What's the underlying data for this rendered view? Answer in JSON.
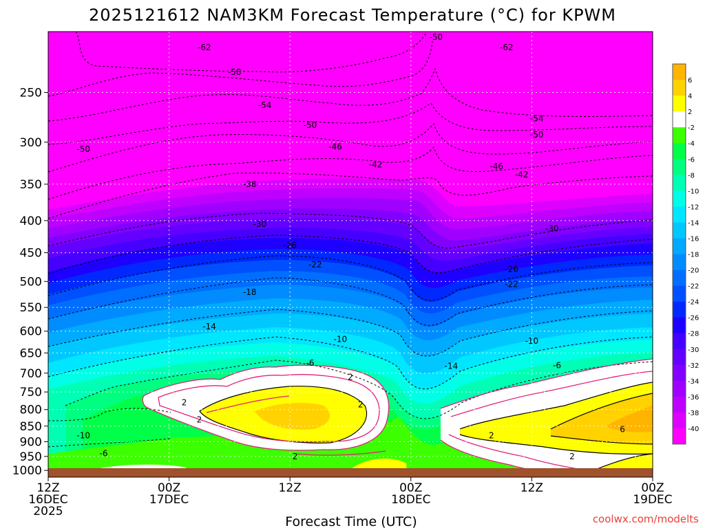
{
  "chart_data": {
    "type": "heatmap",
    "title": "2025121612 NAM3KM Forecast Temperature (°C) for KPWM",
    "xlabel": "Forecast Time (UTC)",
    "ylabel": "",
    "credit": "coolwx.com/modelts",
    "units": "°C",
    "x_range_hours": [
      0,
      60
    ],
    "y_range_hpa": [
      200,
      1025
    ],
    "y_scale": "log-pressure",
    "x_ticks": [
      {
        "hour": 0,
        "lines": [
          "12Z",
          "16DEC",
          "2025"
        ]
      },
      {
        "hour": 12,
        "lines": [
          "00Z",
          "17DEC"
        ]
      },
      {
        "hour": 24,
        "lines": [
          "12Z"
        ]
      },
      {
        "hour": 36,
        "lines": [
          "00Z",
          "18DEC"
        ]
      },
      {
        "hour": 48,
        "lines": [
          "12Z"
        ]
      },
      {
        "hour": 60,
        "lines": [
          "00Z",
          "19DEC"
        ]
      }
    ],
    "y_ticks": [
      250,
      300,
      350,
      400,
      450,
      500,
      550,
      600,
      650,
      700,
      750,
      800,
      850,
      900,
      950,
      1000
    ],
    "colorbar": {
      "bands": [
        {
          "lo": 6,
          "hi": 8,
          "color": "#ffb400"
        },
        {
          "lo": 4,
          "hi": 6,
          "color": "#ffd200"
        },
        {
          "lo": 2,
          "hi": 4,
          "color": "#ffff00"
        },
        {
          "lo": -2,
          "hi": 2,
          "color": "#ffffff"
        },
        {
          "lo": -4,
          "hi": -2,
          "color": "#3cff00"
        },
        {
          "lo": -6,
          "hi": -4,
          "color": "#00ff48"
        },
        {
          "lo": -8,
          "hi": -6,
          "color": "#00ff80"
        },
        {
          "lo": -10,
          "hi": -8,
          "color": "#00ffb4"
        },
        {
          "lo": -12,
          "hi": -10,
          "color": "#00ffe6"
        },
        {
          "lo": -14,
          "hi": -12,
          "color": "#00e6ff"
        },
        {
          "lo": -16,
          "hi": -14,
          "color": "#00c8ff"
        },
        {
          "lo": -18,
          "hi": -16,
          "color": "#00aaff"
        },
        {
          "lo": -20,
          "hi": -18,
          "color": "#008cff"
        },
        {
          "lo": -22,
          "hi": -20,
          "color": "#006eff"
        },
        {
          "lo": -24,
          "hi": -22,
          "color": "#0050ff"
        },
        {
          "lo": -26,
          "hi": -24,
          "color": "#0028ff"
        },
        {
          "lo": -28,
          "hi": -26,
          "color": "#1e00ff"
        },
        {
          "lo": -30,
          "hi": -28,
          "color": "#4600ff"
        },
        {
          "lo": -32,
          "hi": -30,
          "color": "#6400ff"
        },
        {
          "lo": -34,
          "hi": -32,
          "color": "#8200ff"
        },
        {
          "lo": -36,
          "hi": -34,
          "color": "#a000ff"
        },
        {
          "lo": -38,
          "hi": -36,
          "color": "#be00ff"
        },
        {
          "lo": -40,
          "hi": -38,
          "color": "#dc00ff"
        },
        {
          "lo": -99,
          "hi": -40,
          "color": "#ff00ff"
        }
      ],
      "tick_labels": [
        "6",
        "4",
        "2",
        "-2",
        "-4",
        "-6",
        "-8",
        "-10",
        "-12",
        "-14",
        "-16",
        "-18",
        "-20",
        "-22",
        "-24",
        "-26",
        "-28",
        "-30",
        "-32",
        "-34",
        "-36",
        "-38",
        "-40"
      ]
    },
    "contour_labels": [
      {
        "text": "-62",
        "hour": 15.5,
        "hpa": 212
      },
      {
        "text": "-58",
        "hour": 18.5,
        "hpa": 232
      },
      {
        "text": "-54",
        "hour": 21.5,
        "hpa": 262
      },
      {
        "text": "-50",
        "hour": 26.0,
        "hpa": 282
      },
      {
        "text": "-46",
        "hour": 28.5,
        "hpa": 305
      },
      {
        "text": "-42",
        "hour": 32.5,
        "hpa": 326
      },
      {
        "text": "-38",
        "hour": 20.0,
        "hpa": 350
      },
      {
        "text": "-30",
        "hour": 21.0,
        "hpa": 405
      },
      {
        "text": "-26",
        "hour": 24.0,
        "hpa": 438
      },
      {
        "text": "-22",
        "hour": 26.5,
        "hpa": 470
      },
      {
        "text": "-18",
        "hour": 20.0,
        "hpa": 520
      },
      {
        "text": "-14",
        "hour": 16.0,
        "hpa": 590
      },
      {
        "text": "-10",
        "hour": 29.0,
        "hpa": 618
      },
      {
        "text": "-6",
        "hour": 26.0,
        "hpa": 674
      },
      {
        "text": "2",
        "hour": 30.0,
        "hpa": 710
      },
      {
        "text": "2",
        "hour": 13.5,
        "hpa": 780
      },
      {
        "text": "2",
        "hour": 15.0,
        "hpa": 830
      },
      {
        "text": "2",
        "hour": 31.0,
        "hpa": 786
      },
      {
        "text": "2",
        "hour": 24.5,
        "hpa": 950
      },
      {
        "text": "-10",
        "hour": 3.5,
        "hpa": 880
      },
      {
        "text": "-6",
        "hour": 5.5,
        "hpa": 940
      },
      {
        "text": "-50",
        "hour": 3.5,
        "hpa": 308
      },
      {
        "text": "-50",
        "hour": 38.5,
        "hpa": 204
      },
      {
        "text": "-62",
        "hour": 45.5,
        "hpa": 212
      },
      {
        "text": "-54",
        "hour": 48.5,
        "hpa": 275
      },
      {
        "text": "-50",
        "hour": 48.5,
        "hpa": 292
      },
      {
        "text": "-46",
        "hour": 44.5,
        "hpa": 328
      },
      {
        "text": "-42",
        "hour": 47.0,
        "hpa": 338
      },
      {
        "text": "-30",
        "hour": 50.0,
        "hpa": 412
      },
      {
        "text": "-26",
        "hour": 46.0,
        "hpa": 478
      },
      {
        "text": "-22",
        "hour": 46.0,
        "hpa": 505
      },
      {
        "text": "-10",
        "hour": 48.0,
        "hpa": 622
      },
      {
        "text": "-14",
        "hour": 40.0,
        "hpa": 682
      },
      {
        "text": "-6",
        "hour": 50.5,
        "hpa": 680
      },
      {
        "text": "2",
        "hour": 44.0,
        "hpa": 880
      },
      {
        "text": "6",
        "hour": 57.0,
        "hpa": 860
      },
      {
        "text": "2",
        "hour": 52.0,
        "hpa": 950
      }
    ]
  }
}
